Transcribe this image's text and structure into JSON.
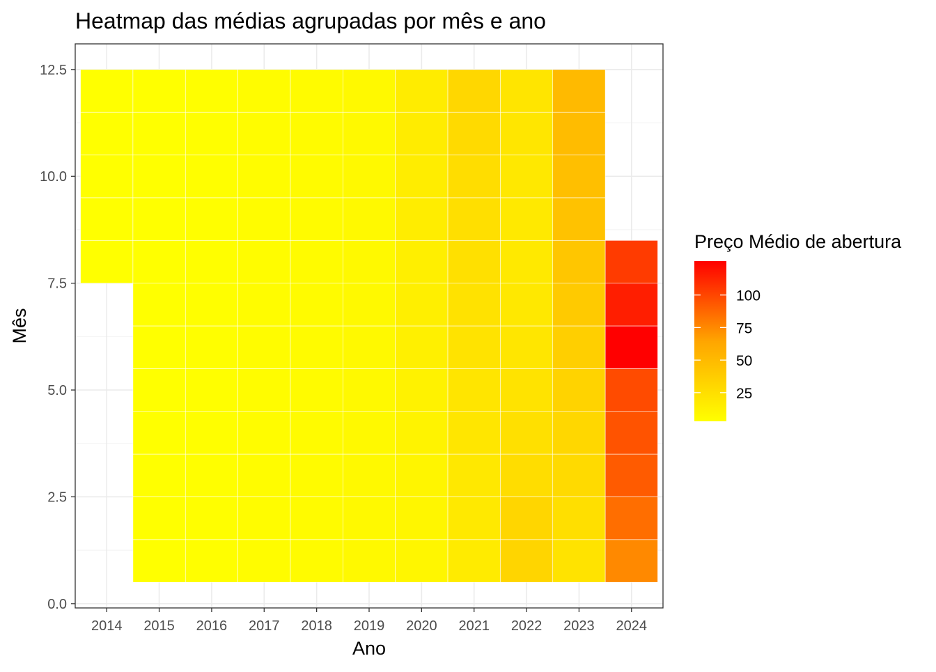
{
  "chart_data": {
    "type": "heatmap",
    "title": "Heatmap das médias agrupadas por mês e ano",
    "xlabel": "Ano",
    "ylabel": "Mês",
    "x_categories": [
      2014,
      2015,
      2016,
      2017,
      2018,
      2019,
      2020,
      2021,
      2022,
      2023,
      2024
    ],
    "x_tick_labels": [
      "2014",
      "2015",
      "2016",
      "2017",
      "2018",
      "2019",
      "2020",
      "2021",
      "2022",
      "2023",
      "2024"
    ],
    "y_ticks": [
      0.0,
      2.5,
      5.0,
      7.5,
      10.0,
      12.5
    ],
    "y_tick_labels": [
      "0.0",
      "2.5",
      "5.0",
      "7.5",
      "10.0",
      "12.5"
    ],
    "ylim": [
      -0.1,
      13.1
    ],
    "grid": true,
    "legend": {
      "title": "Preço Médio de abertura",
      "position": "right",
      "ticks": [
        25,
        50,
        75,
        100
      ],
      "tick_labels": [
        "25",
        "50",
        "75",
        "100"
      ],
      "range": [
        3,
        126
      ],
      "low_color": "#FFFF00",
      "high_color": "#FF0000"
    },
    "series": [
      {
        "year": 2014,
        "months": [
          8,
          9,
          10,
          11,
          12
        ],
        "values": [
          3,
          3,
          3,
          3,
          3
        ]
      },
      {
        "year": 2015,
        "months": [
          1,
          2,
          3,
          4,
          5,
          6,
          7,
          8,
          9,
          10,
          11,
          12
        ],
        "values": [
          3,
          3,
          3,
          3,
          3,
          3,
          3,
          3,
          3,
          3,
          3,
          3
        ]
      },
      {
        "year": 2016,
        "months": [
          1,
          2,
          3,
          4,
          5,
          6,
          7,
          8,
          9,
          10,
          11,
          12
        ],
        "values": [
          4,
          4,
          4,
          4,
          4,
          4,
          4,
          4,
          4,
          4,
          4,
          4
        ]
      },
      {
        "year": 2017,
        "months": [
          1,
          2,
          3,
          4,
          5,
          6,
          7,
          8,
          9,
          10,
          11,
          12
        ],
        "values": [
          5,
          5,
          5,
          5,
          5,
          5,
          5,
          5,
          5,
          5,
          5,
          5
        ]
      },
      {
        "year": 2018,
        "months": [
          1,
          2,
          3,
          4,
          5,
          6,
          7,
          8,
          9,
          10,
          11,
          12
        ],
        "values": [
          6,
          6,
          6,
          6,
          6,
          6,
          6,
          6,
          6,
          6,
          6,
          6
        ]
      },
      {
        "year": 2019,
        "months": [
          1,
          2,
          3,
          4,
          5,
          6,
          7,
          8,
          9,
          10,
          11,
          12
        ],
        "values": [
          7,
          7,
          7,
          7,
          7,
          7,
          7,
          7,
          7,
          7,
          7,
          7
        ]
      },
      {
        "year": 2020,
        "months": [
          1,
          2,
          3,
          4,
          5,
          6,
          7,
          8,
          9,
          10,
          11,
          12
        ],
        "values": [
          9,
          9,
          10,
          11,
          12,
          13,
          14,
          14,
          15,
          15,
          16,
          16
        ]
      },
      {
        "year": 2021,
        "months": [
          1,
          2,
          3,
          4,
          5,
          6,
          7,
          8,
          9,
          10,
          11,
          12
        ],
        "values": [
          17,
          18,
          19,
          20,
          21,
          22,
          23,
          24,
          25,
          26,
          28,
          30
        ]
      },
      {
        "year": 2022,
        "months": [
          1,
          2,
          3,
          4,
          5,
          6,
          7,
          8,
          9,
          10,
          11,
          12
        ],
        "values": [
          32,
          31,
          26,
          24,
          22,
          20,
          19,
          18,
          18,
          19,
          20,
          21
        ]
      },
      {
        "year": 2023,
        "months": [
          1,
          2,
          3,
          4,
          5,
          6,
          7,
          8,
          9,
          10,
          11,
          12
        ],
        "values": [
          22,
          25,
          28,
          30,
          33,
          36,
          39,
          42,
          45,
          47,
          49,
          50
        ]
      },
      {
        "year": 2024,
        "months": [
          1,
          2,
          3,
          4,
          5,
          6,
          7,
          8
        ],
        "values": [
          75,
          85,
          92,
          95,
          98,
          126,
          115,
          104
        ]
      }
    ]
  }
}
